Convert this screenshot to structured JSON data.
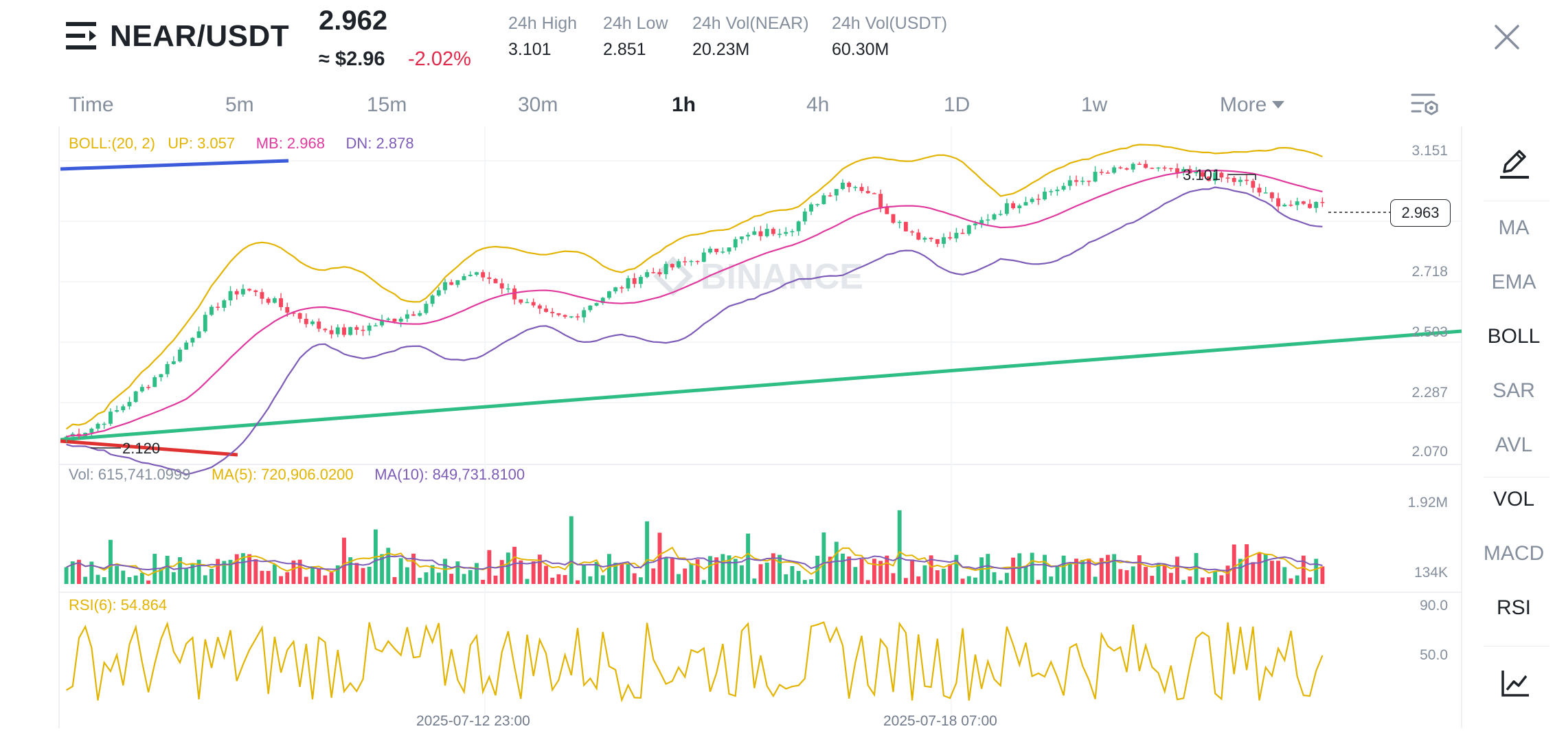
{
  "header": {
    "pair": "NEAR/USDT",
    "last_price": "2.962",
    "usd_price": "≈ $2.96",
    "change": "-2.02%",
    "stats": [
      {
        "label": "24h High",
        "value": "3.101"
      },
      {
        "label": "24h Low",
        "value": "2.851"
      },
      {
        "label": "24h Vol(NEAR)",
        "value": "20.23M"
      },
      {
        "label": "24h Vol(USDT)",
        "value": "60.30M"
      }
    ],
    "close_icon": "close-icon",
    "menu_icon": "collapse-menu-icon"
  },
  "timeframes": {
    "items": [
      "Time",
      "5m",
      "15m",
      "30m",
      "1h",
      "4h",
      "1D",
      "1w",
      "More"
    ],
    "active": "1h",
    "settings_icon": "chart-settings-icon"
  },
  "indicators": {
    "draw_icon": "pencil-icon",
    "items": [
      "MA",
      "EMA",
      "BOLL",
      "SAR",
      "AVL",
      "VOL",
      "MACD",
      "RSI"
    ],
    "active": [
      "BOLL",
      "VOL",
      "RSI"
    ],
    "chart_icon": "line-chart-icon"
  },
  "legends": {
    "boll": "BOLL:(20, 2)",
    "up": "UP: 3.057",
    "mb": "MB: 2.968",
    "dn": "DN: 2.878",
    "vol": "Vol: 615,741.0999",
    "ma5": "MA(5): 720,906.0200",
    "ma10": "MA(10): 849,731.8100",
    "rsi": "RSI(6): 54.864"
  },
  "price_axis": [
    "3.151",
    "2.718",
    "2.503",
    "2.287",
    "2.070"
  ],
  "vol_axis": [
    "1.92M",
    "134K"
  ],
  "rsi_axis": [
    "90.0",
    "50.0"
  ],
  "date_axis": [
    "2025-07-12 23:00",
    "2025-07-18 07:00"
  ],
  "annotations": {
    "high_marker": "3.101",
    "low_marker": "2.120",
    "current_price": "2.963"
  },
  "watermark": "BINANCE",
  "colors": {
    "up": "#2ebd85",
    "down": "#f6465d",
    "boll_up": "#e2b400",
    "boll_mb": "#e0399e",
    "boll_dn": "#7d5cb8",
    "trend_green": "#2ebd85",
    "trend_blue": "#3b5bdb",
    "trend_red": "#e03131",
    "change_red": "#e0294a"
  },
  "chart_data": {
    "type": "candlestick",
    "interval": "1h",
    "price_range": [
      2.07,
      3.151
    ],
    "last": 2.963,
    "high": 3.101,
    "low": 2.12,
    "boll": {
      "period": 20,
      "k": 2,
      "up": 3.057,
      "mb": 2.968,
      "dn": 2.878
    },
    "volume": {
      "last": 615741.0999,
      "ma5": 720906.02,
      "ma10": 849731.81,
      "range": [
        134000,
        1920000
      ]
    },
    "rsi": {
      "period": 6,
      "last": 54.864,
      "levels": [
        90,
        50
      ]
    },
    "price_path": [
      2.13,
      2.16,
      2.22,
      2.3,
      2.38,
      2.49,
      2.6,
      2.66,
      2.62,
      2.57,
      2.52,
      2.5,
      2.52,
      2.55,
      2.58,
      2.66,
      2.71,
      2.69,
      2.62,
      2.56,
      2.55,
      2.61,
      2.66,
      2.71,
      2.73,
      2.76,
      2.8,
      2.84,
      2.86,
      2.88,
      2.98,
      3.04,
      3.0,
      2.9,
      2.84,
      2.83,
      2.87,
      2.93,
      2.97,
      3.0,
      3.03,
      3.06,
      3.08,
      3.09,
      3.07,
      3.06,
      3.05,
      3.03,
      2.97,
      2.95,
      2.962
    ]
  }
}
